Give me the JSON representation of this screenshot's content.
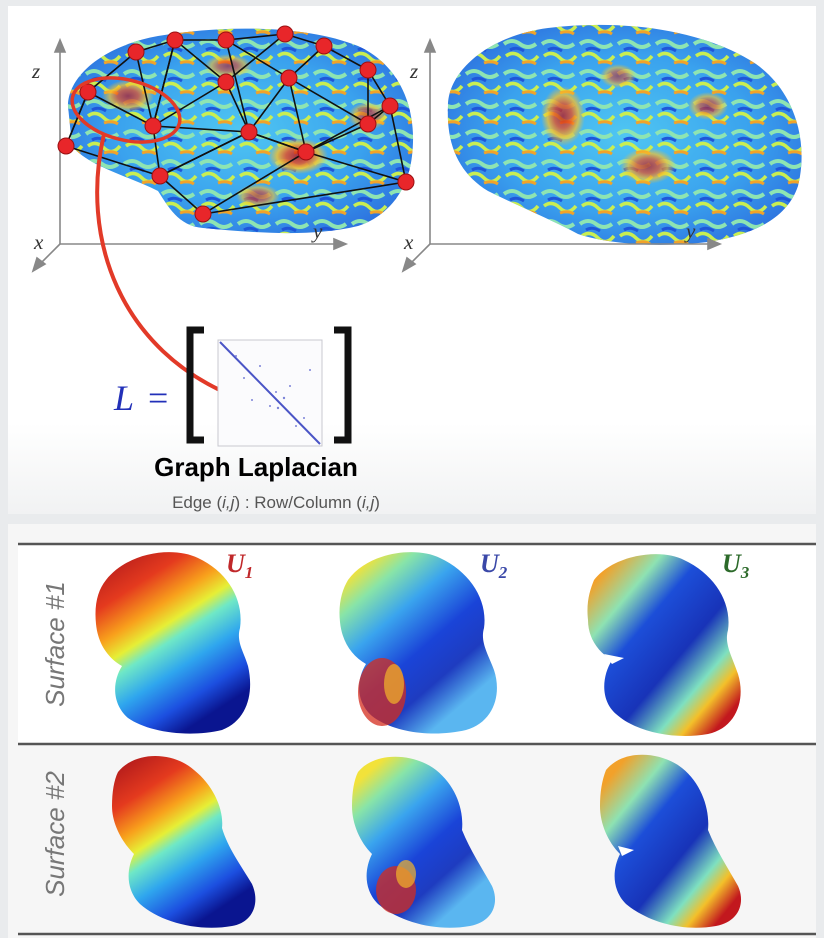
{
  "axes": {
    "left": {
      "x": "x",
      "y": "y",
      "z": "z"
    },
    "right": {
      "x": "x",
      "y": "y",
      "z": "z"
    }
  },
  "equation": {
    "lhs": "L",
    "eq": "="
  },
  "caption": {
    "title": "Graph Laplacian",
    "sub_prefix": "Edge (",
    "sub_ij1": "i,j",
    "sub_mid": ") : Row/Column (",
    "sub_ij2": "i,j",
    "sub_suffix": ")"
  },
  "eigenvectors": [
    {
      "base": "U",
      "sub": "1",
      "color": "#c0282a"
    },
    {
      "base": "U",
      "sub": "2",
      "color": "#3a48a8"
    },
    {
      "base": "U",
      "sub": "3",
      "color": "#2c6a2a"
    }
  ],
  "rows": [
    {
      "label": "Surface #1"
    },
    {
      "label": "Surface #2"
    }
  ],
  "colors": {
    "node": "#e8262a",
    "arrow": "#e23a28",
    "matrix": "#4b55c6",
    "graph_edge": "#111111"
  }
}
